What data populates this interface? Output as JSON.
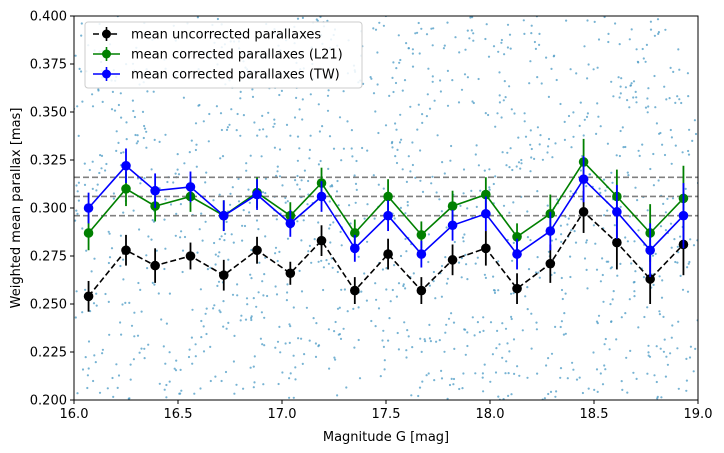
{
  "chart_data": {
    "type": "line",
    "title": "",
    "xlabel": "Magnitude G [mag]",
    "ylabel": "Weighted mean parallax [mas]",
    "xlim": [
      16.0,
      19.0
    ],
    "ylim": [
      0.2,
      0.4
    ],
    "xticks": [
      16.0,
      16.5,
      17.0,
      17.5,
      18.0,
      18.5,
      19.0
    ],
    "xtick_labels": [
      "16.0",
      "16.5",
      "17.0",
      "17.5",
      "18.0",
      "18.5",
      "19.0"
    ],
    "yticks": [
      0.2,
      0.225,
      0.25,
      0.275,
      0.3,
      0.325,
      0.35,
      0.375,
      0.4
    ],
    "ytick_labels": [
      "0.200",
      "0.225",
      "0.250",
      "0.275",
      "0.300",
      "0.325",
      "0.350",
      "0.375",
      "0.400"
    ],
    "legend_position": "top-left",
    "x": [
      16.07,
      16.25,
      16.39,
      16.56,
      16.72,
      16.88,
      17.04,
      17.19,
      17.35,
      17.51,
      17.67,
      17.82,
      17.98,
      18.13,
      18.29,
      18.45,
      18.61,
      18.77,
      18.93
    ],
    "series": [
      {
        "name": "mean uncorrected parallaxes",
        "color": "#000000",
        "linestyle": "dashed",
        "values": [
          0.254,
          0.278,
          0.27,
          0.275,
          0.265,
          0.278,
          0.266,
          0.283,
          0.257,
          0.276,
          0.257,
          0.273,
          0.279,
          0.258,
          0.271,
          0.298,
          0.282,
          0.263,
          0.281
        ],
        "errors": [
          0.008,
          0.008,
          0.009,
          0.007,
          0.008,
          0.007,
          0.006,
          0.008,
          0.007,
          0.008,
          0.007,
          0.008,
          0.009,
          0.008,
          0.01,
          0.011,
          0.014,
          0.013,
          0.016
        ]
      },
      {
        "name": "mean corrected parallaxes (L21)",
        "color": "#008000",
        "linestyle": "solid",
        "values": [
          0.287,
          0.31,
          0.301,
          0.306,
          0.296,
          0.308,
          0.296,
          0.313,
          0.287,
          0.306,
          0.286,
          0.301,
          0.307,
          0.285,
          0.297,
          0.324,
          0.306,
          0.287,
          0.305
        ],
        "errors": [
          0.009,
          0.009,
          0.008,
          0.008,
          0.008,
          0.008,
          0.007,
          0.008,
          0.007,
          0.009,
          0.007,
          0.008,
          0.009,
          0.007,
          0.01,
          0.012,
          0.014,
          0.015,
          0.017
        ]
      },
      {
        "name": "mean corrected parallaxes (TW)",
        "color": "#0000ff",
        "linestyle": "solid",
        "values": [
          0.3,
          0.322,
          0.309,
          0.311,
          0.296,
          0.307,
          0.292,
          0.306,
          0.279,
          0.296,
          0.276,
          0.291,
          0.297,
          0.276,
          0.288,
          0.315,
          0.298,
          0.278,
          0.296
        ],
        "errors": [
          0.008,
          0.009,
          0.009,
          0.008,
          0.008,
          0.008,
          0.007,
          0.008,
          0.007,
          0.008,
          0.007,
          0.008,
          0.009,
          0.008,
          0.01,
          0.012,
          0.014,
          0.014,
          0.017
        ]
      }
    ],
    "reference_lines": {
      "color": "#808080",
      "linestyle": "dashed",
      "values": [
        0.296,
        0.306,
        0.316
      ]
    },
    "background_points": {
      "color": "#4a9ac4",
      "count": 1400
    }
  }
}
